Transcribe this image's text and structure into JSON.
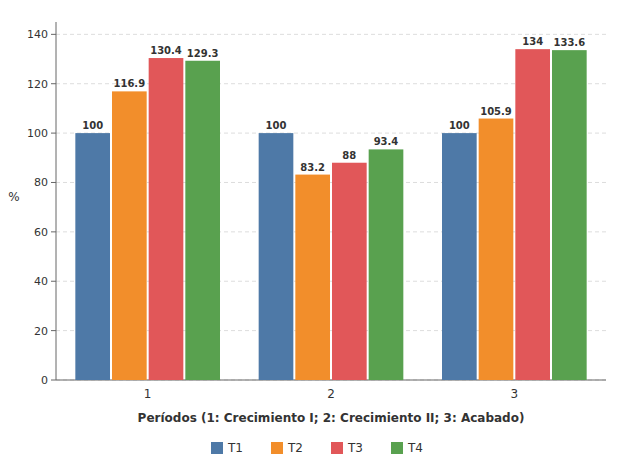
{
  "chart_data": {
    "type": "bar",
    "categories": [
      "1",
      "2",
      "3"
    ],
    "series": [
      {
        "name": "T1",
        "values": [
          100,
          100,
          100
        ]
      },
      {
        "name": "T2",
        "values": [
          116.9,
          83.2,
          105.9
        ]
      },
      {
        "name": "T3",
        "values": [
          130.4,
          88,
          134
        ]
      },
      {
        "name": "T4",
        "values": [
          129.3,
          93.4,
          133.6
        ]
      }
    ],
    "x_label": "Períodos (1: Crecimiento I; 2: Crecimiento II; 3: Acabado)",
    "y_label": "%",
    "ylim": [
      0,
      145
    ],
    "yticks": [
      0,
      20,
      40,
      60,
      80,
      100,
      120,
      140
    ],
    "grid": true,
    "legend": "bottom",
    "data_labels": true
  }
}
